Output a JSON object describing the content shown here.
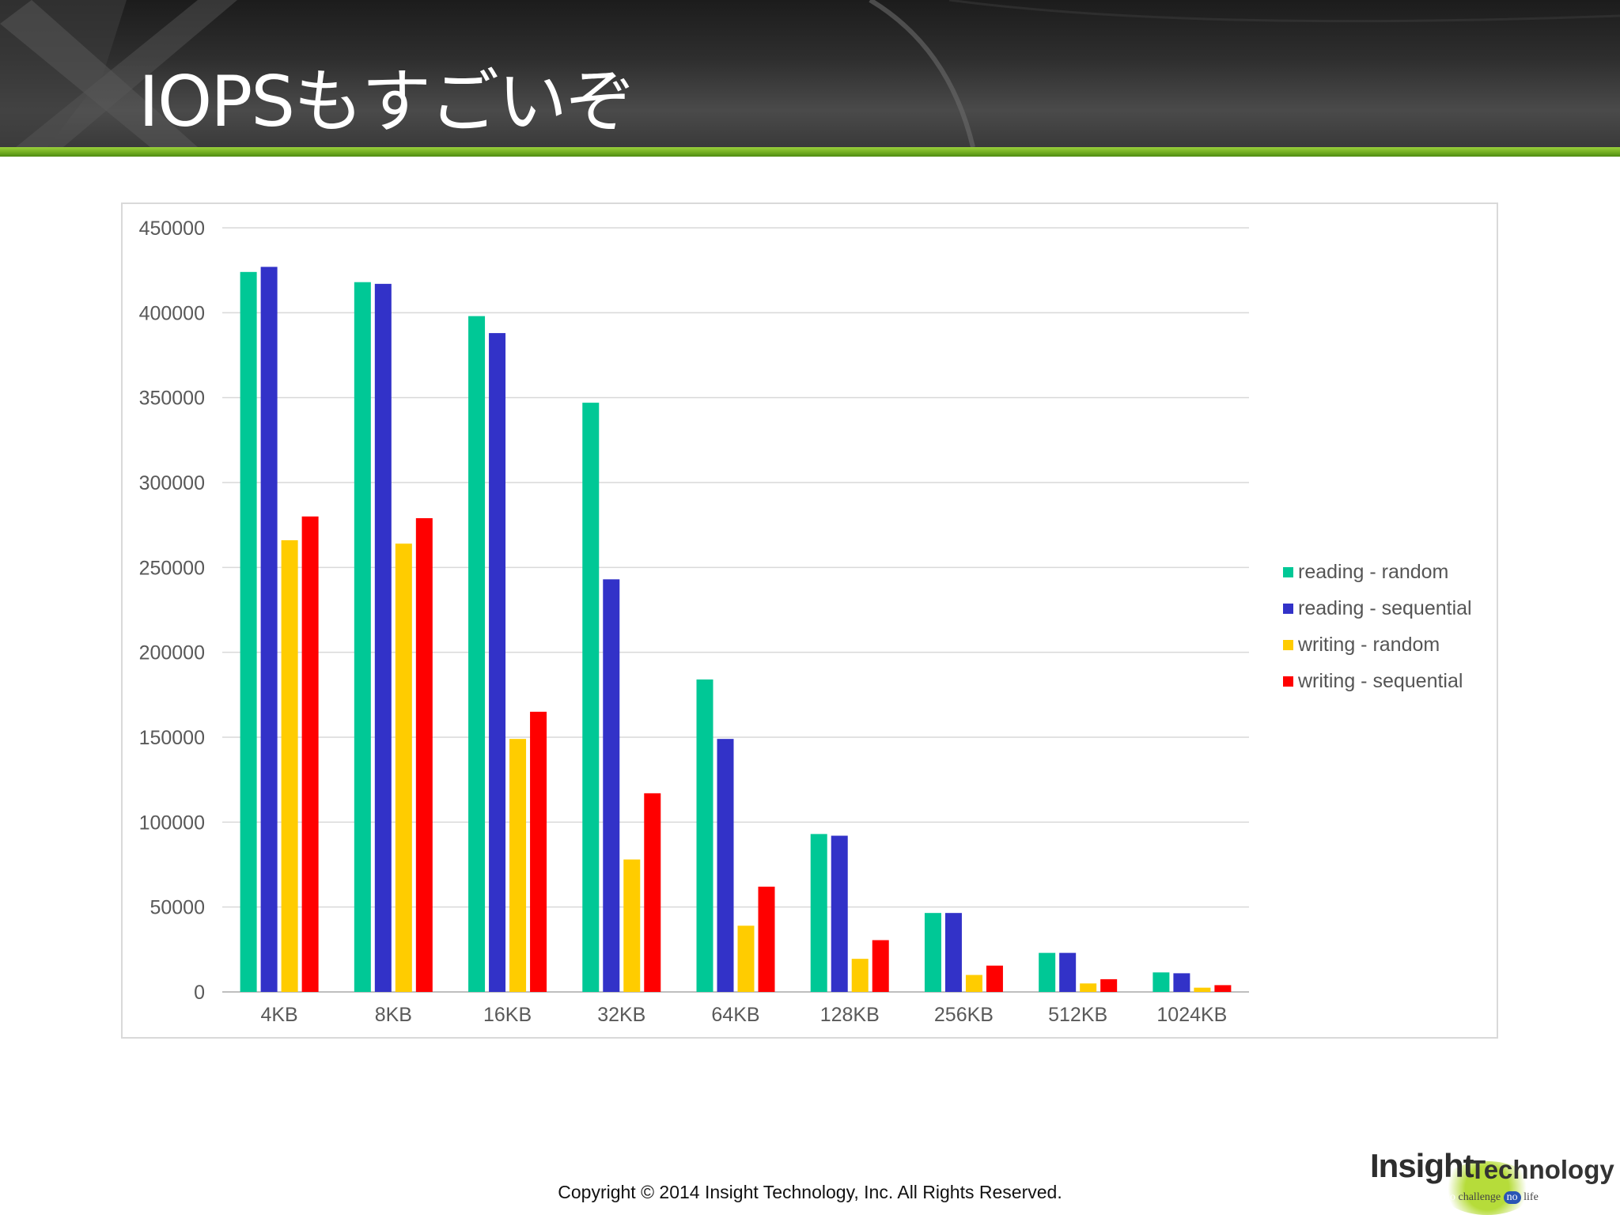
{
  "slide": {
    "title": "IOPSもすごいぞ",
    "footer": "Copyright © 2014 Insight Technology, Inc. All Rights Reserved."
  },
  "logo": {
    "name_part1": "Insight",
    "name_part2": "Technology",
    "tagline_no1": "no",
    "tagline_challenge": "challenge",
    "tagline_no2": "no",
    "tagline_life": "life"
  },
  "colors": {
    "header_bg": "#2e2e2e",
    "accent_green": "#7ab82a",
    "reading_random": "#00c896",
    "reading_sequential": "#3232c8",
    "writing_random": "#ffcc00",
    "writing_sequential": "#ff0000"
  },
  "chart_data": {
    "type": "bar",
    "categories": [
      "4KB",
      "8KB",
      "16KB",
      "32KB",
      "64KB",
      "128KB",
      "256KB",
      "512KB",
      "1024KB"
    ],
    "series": [
      {
        "name": "reading - random",
        "color": "#00c896",
        "values": [
          424000,
          418000,
          398000,
          347000,
          184000,
          93000,
          46500,
          23000,
          11500
        ]
      },
      {
        "name": "reading - sequential",
        "color": "#3232c8",
        "values": [
          427000,
          417000,
          388000,
          243000,
          149000,
          92000,
          46500,
          23000,
          11000
        ]
      },
      {
        "name": "writing - random",
        "color": "#ffcc00",
        "values": [
          266000,
          264000,
          149000,
          78000,
          39000,
          19500,
          10000,
          5000,
          2500
        ]
      },
      {
        "name": "writing - sequential",
        "color": "#ff0000",
        "values": [
          280000,
          279000,
          165000,
          117000,
          62000,
          30500,
          15500,
          7500,
          4000
        ]
      }
    ],
    "yticks": [
      "0",
      "50000",
      "100000",
      "150000",
      "200000",
      "250000",
      "300000",
      "350000",
      "400000",
      "450000"
    ],
    "ylim": [
      0,
      450000
    ],
    "grid": true,
    "legend_position": "right",
    "title": "",
    "xlabel": "",
    "ylabel": ""
  }
}
